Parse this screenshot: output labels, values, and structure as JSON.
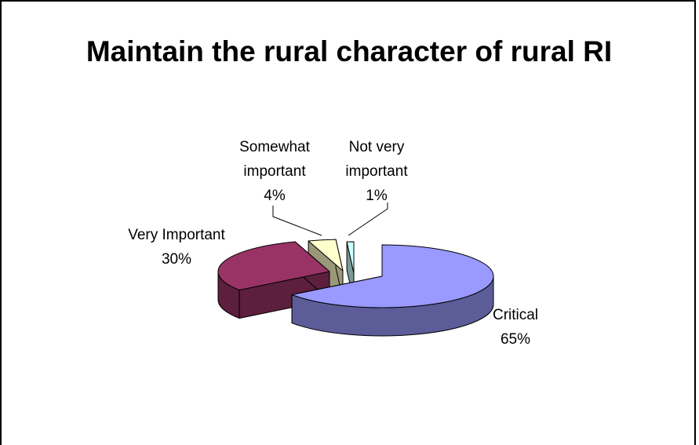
{
  "chart_data": {
    "type": "pie3d",
    "title": "Maintain the rural character of rural RI",
    "categories": [
      "Critical",
      "Very Important",
      "Somewhat important",
      "Not very important"
    ],
    "values": [
      65,
      30,
      4,
      1
    ],
    "value_labels": [
      "65%",
      "30%",
      "4%",
      "1%"
    ],
    "colors": [
      "#9999ff",
      "#993366",
      "#ffffcc",
      "#ccffff"
    ]
  }
}
